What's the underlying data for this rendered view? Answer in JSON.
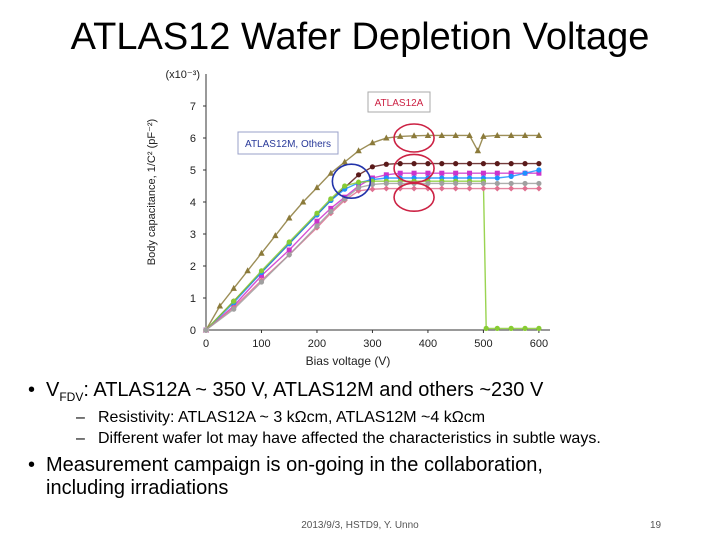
{
  "slide": {
    "title": "ATLAS12 Wafer Depletion Voltage",
    "bullet1": {
      "v": "V",
      "sub": "FDV",
      "rest": ": ATLAS12A ~ 350 V, ATLAS12M and others ~230 V"
    },
    "sub1": "Resistivity: ATLAS12A ~ 3 kΩcm, ATLAS12M ~4 kΩcm",
    "sub2": "Different wafer lot may have affected the characteristics in subtle ways.",
    "bullet2_line1": "Measurement campaign is on-going in the collaboration,",
    "bullet2_line2": "including irradiations",
    "footer": "2013/9/3, HSTD9, Y. Unno",
    "page_number": "19",
    "bullet_char": "•",
    "dash_char": "–"
  },
  "chart_data": {
    "type": "scatter",
    "title": "",
    "xlabel": "Bias voltage (V)",
    "ylabel": "Body capacitance, 1/C² (pF⁻²)",
    "y_multiplier": "(x10⁻³)",
    "xlim": [
      0,
      620
    ],
    "ylim": [
      0,
      8
    ],
    "xticks": [
      0,
      100,
      200,
      300,
      400,
      500,
      600
    ],
    "yticks": [
      0,
      1,
      2,
      3,
      4,
      5,
      6,
      7
    ],
    "grid": false,
    "annotations": [
      {
        "text": "ATLAS12A",
        "color": "#cc2244"
      },
      {
        "text": "ATLAS12M, Others",
        "color": "#2a3a9a"
      }
    ],
    "series": [
      {
        "color": "#8b7a3a",
        "marker": "triangle",
        "x": [
          0,
          25,
          50,
          75,
          100,
          125,
          150,
          175,
          200,
          225,
          250,
          275,
          300,
          325,
          350,
          375,
          400,
          425,
          450,
          475,
          490,
          500,
          525,
          550,
          575,
          600
        ],
        "y": [
          0,
          0.75,
          1.3,
          1.85,
          2.4,
          2.95,
          3.5,
          4.0,
          4.45,
          4.9,
          5.25,
          5.6,
          5.85,
          6.0,
          6.05,
          6.07,
          6.08,
          6.08,
          6.08,
          6.08,
          5.6,
          6.05,
          6.08,
          6.08,
          6.08,
          6.08
        ]
      },
      {
        "color": "#5a1a1a",
        "marker": "circle",
        "x": [
          0,
          50,
          100,
          150,
          200,
          225,
          250,
          275,
          300,
          325,
          350,
          375,
          400,
          425,
          450,
          475,
          500,
          525,
          550,
          575,
          600
        ],
        "y": [
          0,
          0.9,
          1.8,
          2.7,
          3.6,
          4.05,
          4.45,
          4.85,
          5.1,
          5.18,
          5.2,
          5.2,
          5.2,
          5.2,
          5.2,
          5.2,
          5.2,
          5.2,
          5.2,
          5.2,
          5.2
        ]
      },
      {
        "color": "#cc33cc",
        "marker": "square",
        "x": [
          0,
          50,
          100,
          150,
          200,
          225,
          250,
          275,
          300,
          325,
          350,
          375,
          400,
          425,
          450,
          475,
          500,
          525,
          550,
          575,
          600
        ],
        "y": [
          0,
          0.75,
          1.7,
          2.5,
          3.4,
          3.8,
          4.15,
          4.5,
          4.75,
          4.85,
          4.9,
          4.9,
          4.9,
          4.9,
          4.9,
          4.9,
          4.9,
          4.9,
          4.9,
          4.9,
          4.9
        ]
      },
      {
        "color": "#1e90ff",
        "marker": "circle",
        "x": [
          0,
          50,
          100,
          150,
          200,
          225,
          250,
          275,
          300,
          325,
          350,
          375,
          400,
          425,
          450,
          475,
          500,
          525,
          550,
          575,
          600
        ],
        "y": [
          0,
          0.85,
          1.8,
          2.7,
          3.6,
          4.05,
          4.4,
          4.6,
          4.7,
          4.75,
          4.75,
          4.75,
          4.75,
          4.75,
          4.75,
          4.75,
          4.75,
          4.75,
          4.8,
          4.9,
          5.0
        ]
      },
      {
        "color": "#88cc33",
        "marker": "circle",
        "x": [
          0,
          50,
          100,
          150,
          200,
          225,
          250,
          275,
          300,
          325,
          350,
          375,
          400,
          425,
          450,
          475,
          500,
          505,
          525,
          550,
          575,
          600
        ],
        "y": [
          0,
          0.9,
          1.85,
          2.75,
          3.65,
          4.1,
          4.5,
          4.62,
          4.65,
          4.65,
          4.65,
          4.65,
          4.65,
          4.65,
          4.65,
          4.65,
          4.65,
          0.05,
          0.05,
          0.05,
          0.05,
          0.05
        ]
      },
      {
        "color": "#e07090",
        "marker": "diamond",
        "x": [
          0,
          50,
          100,
          150,
          200,
          225,
          250,
          275,
          300,
          325,
          350,
          375,
          400,
          425,
          450,
          475,
          500,
          525,
          550,
          575,
          600
        ],
        "y": [
          0,
          0.7,
          1.55,
          2.35,
          3.2,
          3.65,
          4.05,
          4.35,
          4.4,
          4.42,
          4.42,
          4.42,
          4.42,
          4.42,
          4.42,
          4.42,
          4.42,
          4.42,
          4.42,
          4.42,
          4.42
        ]
      },
      {
        "color": "#a0a0a0",
        "marker": "circle",
        "x": [
          0,
          50,
          100,
          150,
          200,
          225,
          250,
          275,
          300,
          325,
          350,
          375,
          400,
          425,
          450,
          475,
          500,
          525,
          550,
          575,
          600
        ],
        "y": [
          0,
          0.65,
          1.5,
          2.35,
          3.25,
          3.7,
          4.1,
          4.45,
          4.55,
          4.58,
          4.58,
          4.58,
          4.58,
          4.58,
          4.58,
          4.58,
          4.58,
          4.58,
          4.58,
          4.58,
          4.58
        ]
      }
    ]
  }
}
